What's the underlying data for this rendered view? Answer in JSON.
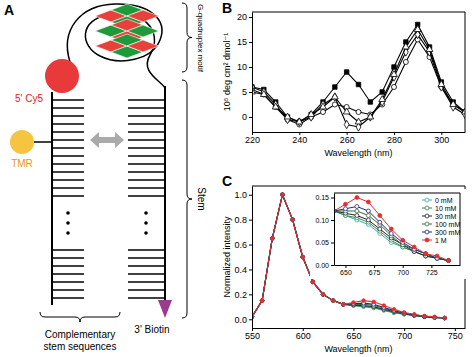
{
  "diagram": {
    "panel_label": "A",
    "labels": {
      "cy5": "5' Cy5",
      "tmr": "TMR",
      "biotin": "3' Biotin",
      "quadruplex": "G-quadruplex motif",
      "stem": "Stem",
      "complementary": [
        "Complementary",
        "stem sequences"
      ]
    }
  },
  "chart_data": [
    {
      "type": "line",
      "title": "B",
      "xlabel": "Wavelength (nm)",
      "ylabel": "10⁵ deg cm² dmol⁻¹",
      "x": [
        220,
        225,
        230,
        235,
        240,
        245,
        250,
        255,
        260,
        265,
        270,
        275,
        280,
        285,
        290,
        295,
        300,
        305,
        310
      ],
      "xlim": [
        220,
        310
      ],
      "xticks": [
        220,
        240,
        260,
        280,
        300
      ],
      "ylim": [
        -3,
        21
      ],
      "yticks": [
        0,
        5,
        10,
        15,
        20
      ],
      "series": [
        {
          "color": "#000000",
          "marker": "filled-square",
          "line_style": "solid",
          "values": [
            6,
            5.5,
            3,
            0,
            -1,
            0.5,
            3,
            6,
            9,
            6.5,
            3,
            5,
            10,
            15,
            18.5,
            14,
            7,
            3,
            1
          ]
        },
        {
          "color": "#000000",
          "marker": "open-circle",
          "line_style": "solid",
          "values": [
            5.5,
            4.5,
            2,
            -0.5,
            -1.5,
            0,
            1,
            2.5,
            2,
            1,
            0.5,
            2.5,
            6,
            11,
            15.5,
            12,
            6,
            2.5,
            1
          ]
        },
        {
          "color": "#000000",
          "marker": "open-diamond",
          "line_style": "solid",
          "values": [
            6,
            5,
            2.5,
            -0.5,
            -1,
            0,
            2.5,
            4,
            -1.5,
            -2,
            0,
            3,
            8,
            13,
            16.5,
            13,
            6,
            2,
            0.5
          ]
        },
        {
          "color": "#000000",
          "marker": "open-triangle",
          "line_style": "solid",
          "values": [
            5,
            4.5,
            2,
            0,
            -1,
            0.5,
            2,
            4,
            1,
            -1,
            0,
            3.5,
            8.5,
            14,
            17.5,
            13.5,
            6.5,
            2.5,
            1
          ]
        }
      ]
    },
    {
      "type": "line",
      "title": "C",
      "xlabel": "Wavelength (nm)",
      "ylabel": "Normalized intensity",
      "x": [
        550,
        560,
        570,
        580,
        590,
        600,
        610,
        620,
        630,
        640,
        650,
        660,
        670,
        680,
        690,
        700,
        710,
        720,
        730,
        740
      ],
      "xlim": [
        550,
        760
      ],
      "xticks": [
        550,
        600,
        650,
        700,
        750
      ],
      "ylim": [
        -0.07,
        1.07
      ],
      "yticks": [
        {
          "value": 0,
          "label": "0.0"
        },
        {
          "value": 0.2,
          "label": "0.2"
        },
        {
          "value": 0.4,
          "label": "0.4"
        },
        {
          "value": 0.6,
          "label": "0.6"
        },
        {
          "value": 0.8,
          "label": "0.8"
        },
        {
          "value": 1,
          "label": "1.0"
        }
      ],
      "series": [
        {
          "color": "#3fa7a7",
          "marker": "open-circle",
          "line_style": "solid",
          "values": [
            0.02,
            0.15,
            0.65,
            1.0,
            0.8,
            0.5,
            0.3,
            0.2,
            0.15,
            0.12,
            0.11,
            0.1,
            0.09,
            0.07,
            0.05,
            0.04,
            0.03,
            0.02,
            0.015,
            0.01
          ]
        },
        {
          "color": "#2e8b57",
          "marker": "open-circle",
          "line_style": "solid",
          "values": [
            0.02,
            0.15,
            0.65,
            1.0,
            0.8,
            0.5,
            0.3,
            0.2,
            0.15,
            0.12,
            0.11,
            0.105,
            0.095,
            0.075,
            0.055,
            0.04,
            0.03,
            0.02,
            0.015,
            0.01
          ]
        },
        {
          "color": "#222222",
          "marker": "open-circle",
          "line_style": "solid",
          "values": [
            0.02,
            0.15,
            0.65,
            1.0,
            0.8,
            0.5,
            0.3,
            0.2,
            0.15,
            0.12,
            0.115,
            0.11,
            0.1,
            0.08,
            0.06,
            0.045,
            0.03,
            0.02,
            0.015,
            0.01
          ]
        },
        {
          "color": "#3a6b3a",
          "marker": "open-circle",
          "line_style": "solid",
          "values": [
            0.02,
            0.15,
            0.65,
            1.0,
            0.8,
            0.5,
            0.3,
            0.2,
            0.15,
            0.12,
            0.12,
            0.12,
            0.11,
            0.09,
            0.065,
            0.045,
            0.035,
            0.025,
            0.015,
            0.01
          ]
        },
        {
          "color": "#1f2a80",
          "marker": "open-circle",
          "line_style": "solid",
          "values": [
            0.02,
            0.15,
            0.65,
            1.0,
            0.8,
            0.5,
            0.3,
            0.2,
            0.15,
            0.12,
            0.125,
            0.13,
            0.12,
            0.095,
            0.07,
            0.05,
            0.035,
            0.025,
            0.015,
            0.01
          ]
        },
        {
          "color": "#e03030",
          "marker": "filled-circle",
          "line_style": "solid",
          "values": [
            0.02,
            0.15,
            0.65,
            1.0,
            0.8,
            0.5,
            0.3,
            0.2,
            0.15,
            0.12,
            0.135,
            0.15,
            0.14,
            0.11,
            0.08,
            0.055,
            0.04,
            0.025,
            0.02,
            0.01
          ]
        }
      ]
    },
    {
      "type": "line",
      "x": [
        640,
        650,
        660,
        670,
        680,
        690,
        700,
        710,
        720,
        730,
        740
      ],
      "xlim": [
        640,
        750
      ],
      "xticks": [
        650,
        675,
        700,
        725
      ],
      "ylim": [
        0,
        0.16
      ],
      "yticks": [
        {
          "value": 0,
          "label": "0.00"
        },
        {
          "value": 0.05,
          "label": "0.05"
        },
        {
          "value": 0.1,
          "label": "0.10"
        },
        {
          "value": 0.15,
          "label": "0.15"
        }
      ],
      "legend": "upper right",
      "series": [
        {
          "name": "0 mM",
          "color": "#3fa7a7",
          "marker": "open-circle",
          "line_style": "solid",
          "values": [
            0.12,
            0.11,
            0.1,
            0.09,
            0.07,
            0.05,
            0.04,
            0.03,
            0.02,
            0.015,
            0.01
          ]
        },
        {
          "name": "10 mM",
          "color": "#2e8b57",
          "marker": "open-circle",
          "line_style": "solid",
          "values": [
            0.12,
            0.11,
            0.105,
            0.095,
            0.075,
            0.055,
            0.04,
            0.03,
            0.02,
            0.015,
            0.01
          ]
        },
        {
          "name": "30 mM",
          "color": "#222222",
          "marker": "open-circle",
          "line_style": "solid",
          "values": [
            0.12,
            0.115,
            0.11,
            0.1,
            0.08,
            0.06,
            0.045,
            0.03,
            0.02,
            0.015,
            0.01
          ]
        },
        {
          "name": "100 mM",
          "color": "#3a6b3a",
          "marker": "open-circle",
          "line_style": "solid",
          "values": [
            0.12,
            0.12,
            0.12,
            0.11,
            0.09,
            0.065,
            0.045,
            0.035,
            0.025,
            0.015,
            0.01
          ]
        },
        {
          "name": "300 mM",
          "color": "#1f2a80",
          "marker": "open-circle",
          "line_style": "solid",
          "values": [
            0.12,
            0.125,
            0.13,
            0.12,
            0.095,
            0.07,
            0.05,
            0.035,
            0.025,
            0.015,
            0.01
          ]
        },
        {
          "name": "1 M",
          "color": "#e03030",
          "marker": "filled-circle",
          "line_style": "solid",
          "values": [
            0.12,
            0.135,
            0.15,
            0.14,
            0.11,
            0.08,
            0.055,
            0.04,
            0.025,
            0.02,
            0.01
          ]
        }
      ]
    }
  ]
}
